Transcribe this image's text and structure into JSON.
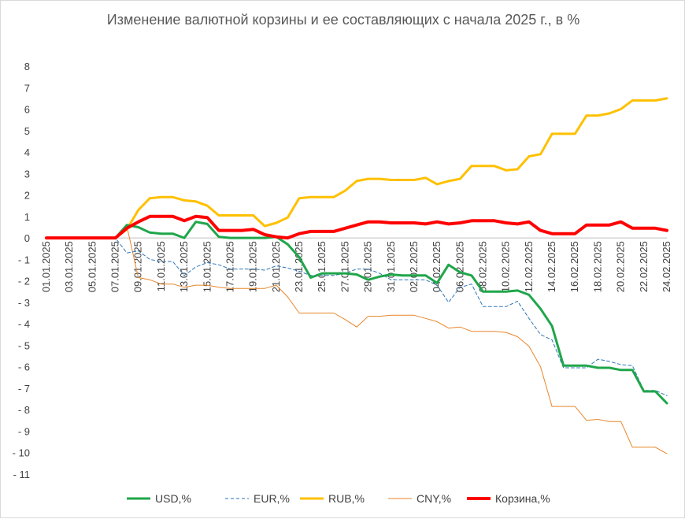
{
  "chart_data": {
    "type": "line",
    "title": "Изменение валютной корзины и ее составляющих с начала 2025 г., в %",
    "ylim": [
      -11,
      8
    ],
    "y_ticks": [
      "8",
      "7",
      "6",
      "5",
      "4",
      "3",
      "2",
      "1",
      "0",
      "- 1",
      "- 2",
      "- 3",
      "- 4",
      "- 5",
      "- 6",
      "- 7",
      "- 8",
      "- 9",
      "- 10",
      "- 11"
    ],
    "y_tick_values": [
      8,
      7,
      6,
      5,
      4,
      3,
      2,
      1,
      0,
      -1,
      -2,
      -3,
      -4,
      -5,
      -6,
      -7,
      -8,
      -9,
      -10,
      -11
    ],
    "x_tick_labels": [
      "01.01.2025",
      "03.01.2025",
      "05.01.2025",
      "07.01.2025",
      "09.01.2025",
      "11.01.2025",
      "13.01.2025",
      "15.01.2025",
      "17.01.2025",
      "19.01.2025",
      "21.01.2025",
      "23.01.2025",
      "25.01.2025",
      "27.01.2025",
      "29.01.2025",
      "31.01.2025",
      "02.02.2025",
      "04.02.2025",
      "06.02.2025",
      "08.02.2025",
      "10.02.2025",
      "12.02.2025",
      "14.02.2025",
      "16.02.2025",
      "18.02.2025",
      "20.02.2025",
      "22.02.2025",
      "24.02.2025"
    ],
    "x_day_range": [
      1,
      55
    ],
    "grid": false,
    "legend_position": "bottom",
    "series": [
      {
        "name": "USD,%",
        "color": "#1fa64a",
        "style": "solid",
        "width": 3,
        "points": [
          [
            1,
            0
          ],
          [
            2,
            0
          ],
          [
            3,
            0
          ],
          [
            4,
            0
          ],
          [
            5,
            0
          ],
          [
            6,
            0
          ],
          [
            7,
            0
          ],
          [
            8,
            0.6
          ],
          [
            9,
            0.5
          ],
          [
            10,
            0.25
          ],
          [
            11,
            0.2
          ],
          [
            12,
            0.2
          ],
          [
            13,
            0
          ],
          [
            14,
            0.75
          ],
          [
            15,
            0.65
          ],
          [
            16,
            0.05
          ],
          [
            17,
            0
          ],
          [
            18,
            0
          ],
          [
            19,
            0
          ],
          [
            20,
            0
          ],
          [
            21,
            0.05
          ],
          [
            22,
            -0.3
          ],
          [
            23,
            -0.9
          ],
          [
            24,
            -1.85
          ],
          [
            25,
            -1.65
          ],
          [
            26,
            -1.65
          ],
          [
            27,
            -1.65
          ],
          [
            28,
            -1.7
          ],
          [
            29,
            -1.95
          ],
          [
            30,
            -1.8
          ],
          [
            31,
            -1.7
          ],
          [
            32,
            -1.75
          ],
          [
            33,
            -1.75
          ],
          [
            34,
            -1.75
          ],
          [
            35,
            -2.1
          ],
          [
            36,
            -1.25
          ],
          [
            37,
            -1.6
          ],
          [
            38,
            -1.75
          ],
          [
            39,
            -2.5
          ],
          [
            40,
            -2.5
          ],
          [
            41,
            -2.5
          ],
          [
            42,
            -2.45
          ],
          [
            43,
            -2.65
          ],
          [
            44,
            -3.3
          ],
          [
            45,
            -4.1
          ],
          [
            46,
            -5.95
          ],
          [
            47,
            -5.95
          ],
          [
            48,
            -5.95
          ],
          [
            49,
            -6.05
          ],
          [
            50,
            -6.05
          ],
          [
            51,
            -6.15
          ],
          [
            52,
            -6.15
          ],
          [
            53,
            -7.15
          ],
          [
            54,
            -7.15
          ],
          [
            55,
            -7.7
          ]
        ]
      },
      {
        "name": "EUR,%",
        "color": "#2e75b6",
        "style": "dashed",
        "width": 1,
        "points": [
          [
            1,
            0
          ],
          [
            2,
            0
          ],
          [
            3,
            0
          ],
          [
            4,
            0
          ],
          [
            5,
            0
          ],
          [
            6,
            0
          ],
          [
            7,
            0
          ],
          [
            8,
            -0.7
          ],
          [
            9,
            -0.6
          ],
          [
            10,
            -1
          ],
          [
            11,
            -1.1
          ],
          [
            12,
            -1.1
          ],
          [
            13,
            -1.75
          ],
          [
            14,
            -1.35
          ],
          [
            15,
            -1.15
          ],
          [
            16,
            -1.25
          ],
          [
            17,
            -1.45
          ],
          [
            18,
            -1.45
          ],
          [
            19,
            -1.45
          ],
          [
            20,
            -1.5
          ],
          [
            21,
            -1.3
          ],
          [
            22,
            -1.4
          ],
          [
            23,
            -1.55
          ],
          [
            24,
            -1.75
          ],
          [
            25,
            -1.75
          ],
          [
            26,
            -1.75
          ],
          [
            27,
            -1.65
          ],
          [
            28,
            -1.45
          ],
          [
            29,
            -1.45
          ],
          [
            30,
            -1.65
          ],
          [
            31,
            -1.95
          ],
          [
            32,
            -1.95
          ],
          [
            33,
            -1.95
          ],
          [
            34,
            -1.95
          ],
          [
            35,
            -2.2
          ],
          [
            36,
            -3
          ],
          [
            37,
            -2.3
          ],
          [
            38,
            -2.15
          ],
          [
            39,
            -3.2
          ],
          [
            40,
            -3.2
          ],
          [
            41,
            -3.2
          ],
          [
            42,
            -2.95
          ],
          [
            43,
            -3.75
          ],
          [
            44,
            -4.5
          ],
          [
            45,
            -4.75
          ],
          [
            46,
            -6.05
          ],
          [
            47,
            -6.05
          ],
          [
            48,
            -6.05
          ],
          [
            49,
            -5.65
          ],
          [
            50,
            -5.75
          ],
          [
            51,
            -5.9
          ],
          [
            52,
            -5.95
          ],
          [
            53,
            -7.1
          ],
          [
            54,
            -7.1
          ],
          [
            55,
            -7.35
          ]
        ]
      },
      {
        "name": "RUB,%",
        "color": "#ffc000",
        "style": "solid",
        "width": 3,
        "points": [
          [
            1,
            0
          ],
          [
            2,
            0
          ],
          [
            3,
            0
          ],
          [
            4,
            0
          ],
          [
            5,
            0
          ],
          [
            6,
            0
          ],
          [
            7,
            0
          ],
          [
            8,
            0.4
          ],
          [
            9,
            1.3
          ],
          [
            10,
            1.85
          ],
          [
            11,
            1.9
          ],
          [
            12,
            1.9
          ],
          [
            13,
            1.75
          ],
          [
            14,
            1.7
          ],
          [
            15,
            1.5
          ],
          [
            16,
            1.05
          ],
          [
            17,
            1.05
          ],
          [
            18,
            1.05
          ],
          [
            19,
            1.05
          ],
          [
            20,
            0.55
          ],
          [
            21,
            0.7
          ],
          [
            22,
            0.95
          ],
          [
            23,
            1.85
          ],
          [
            24,
            1.9
          ],
          [
            25,
            1.9
          ],
          [
            26,
            1.9
          ],
          [
            27,
            2.2
          ],
          [
            28,
            2.65
          ],
          [
            29,
            2.75
          ],
          [
            30,
            2.75
          ],
          [
            31,
            2.7
          ],
          [
            32,
            2.7
          ],
          [
            33,
            2.7
          ],
          [
            34,
            2.8
          ],
          [
            35,
            2.5
          ],
          [
            36,
            2.65
          ],
          [
            37,
            2.75
          ],
          [
            38,
            3.35
          ],
          [
            39,
            3.35
          ],
          [
            40,
            3.35
          ],
          [
            41,
            3.15
          ],
          [
            42,
            3.2
          ],
          [
            43,
            3.8
          ],
          [
            44,
            3.9
          ],
          [
            45,
            4.85
          ],
          [
            46,
            4.85
          ],
          [
            47,
            4.85
          ],
          [
            48,
            5.7
          ],
          [
            49,
            5.7
          ],
          [
            50,
            5.8
          ],
          [
            51,
            6
          ],
          [
            52,
            6.4
          ],
          [
            53,
            6.4
          ],
          [
            54,
            6.4
          ],
          [
            55,
            6.5
          ]
        ]
      },
      {
        "name": "CNY,%",
        "color": "#e8862a",
        "style": "solid",
        "width": 1,
        "points": [
          [
            1,
            0
          ],
          [
            2,
            0
          ],
          [
            3,
            0
          ],
          [
            4,
            0
          ],
          [
            5,
            0
          ],
          [
            6,
            0
          ],
          [
            7,
            0
          ],
          [
            8,
            0.55
          ],
          [
            9,
            -1.85
          ],
          [
            10,
            -1.95
          ],
          [
            11,
            -2.15
          ],
          [
            12,
            -2.15
          ],
          [
            13,
            -2.3
          ],
          [
            14,
            -2.2
          ],
          [
            15,
            -2.2
          ],
          [
            16,
            -2.3
          ],
          [
            17,
            -2.35
          ],
          [
            18,
            -2.35
          ],
          [
            19,
            -2.35
          ],
          [
            20,
            -2.35
          ],
          [
            21,
            -2.2
          ],
          [
            22,
            -2.75
          ],
          [
            23,
            -3.5
          ],
          [
            24,
            -3.5
          ],
          [
            25,
            -3.5
          ],
          [
            26,
            -3.5
          ],
          [
            27,
            -3.8
          ],
          [
            28,
            -4.15
          ],
          [
            29,
            -3.65
          ],
          [
            30,
            -3.65
          ],
          [
            31,
            -3.6
          ],
          [
            32,
            -3.6
          ],
          [
            33,
            -3.6
          ],
          [
            34,
            -3.75
          ],
          [
            35,
            -3.9
          ],
          [
            36,
            -4.2
          ],
          [
            37,
            -4.15
          ],
          [
            38,
            -4.35
          ],
          [
            39,
            -4.35
          ],
          [
            40,
            -4.35
          ],
          [
            41,
            -4.4
          ],
          [
            42,
            -4.6
          ],
          [
            43,
            -5.05
          ],
          [
            44,
            -6
          ],
          [
            45,
            -7.85
          ],
          [
            46,
            -7.85
          ],
          [
            47,
            -7.85
          ],
          [
            48,
            -8.5
          ],
          [
            49,
            -8.45
          ],
          [
            50,
            -8.55
          ],
          [
            51,
            -8.55
          ],
          [
            52,
            -9.75
          ],
          [
            53,
            -9.75
          ],
          [
            54,
            -9.75
          ],
          [
            55,
            -10.05
          ]
        ]
      },
      {
        "name": "Корзина,%",
        "color": "#ff0000",
        "style": "solid",
        "width": 4,
        "points": [
          [
            1,
            0
          ],
          [
            2,
            0
          ],
          [
            3,
            0
          ],
          [
            4,
            0
          ],
          [
            5,
            0
          ],
          [
            6,
            0
          ],
          [
            7,
            0
          ],
          [
            8,
            0.45
          ],
          [
            9,
            0.75
          ],
          [
            10,
            1
          ],
          [
            11,
            1
          ],
          [
            12,
            1
          ],
          [
            13,
            0.8
          ],
          [
            14,
            1
          ],
          [
            15,
            0.95
          ],
          [
            16,
            0.35
          ],
          [
            17,
            0.35
          ],
          [
            18,
            0.35
          ],
          [
            19,
            0.4
          ],
          [
            20,
            0.15
          ],
          [
            21,
            0.05
          ],
          [
            22,
            0
          ],
          [
            23,
            0.2
          ],
          [
            24,
            0.3
          ],
          [
            25,
            0.3
          ],
          [
            26,
            0.3
          ],
          [
            27,
            0.45
          ],
          [
            28,
            0.6
          ],
          [
            29,
            0.75
          ],
          [
            30,
            0.75
          ],
          [
            31,
            0.7
          ],
          [
            32,
            0.7
          ],
          [
            33,
            0.7
          ],
          [
            34,
            0.65
          ],
          [
            35,
            0.75
          ],
          [
            36,
            0.65
          ],
          [
            37,
            0.7
          ],
          [
            38,
            0.8
          ],
          [
            39,
            0.8
          ],
          [
            40,
            0.8
          ],
          [
            41,
            0.7
          ],
          [
            42,
            0.65
          ],
          [
            43,
            0.75
          ],
          [
            44,
            0.35
          ],
          [
            45,
            0.2
          ],
          [
            46,
            0.2
          ],
          [
            47,
            0.2
          ],
          [
            48,
            0.6
          ],
          [
            49,
            0.6
          ],
          [
            50,
            0.6
          ],
          [
            51,
            0.75
          ],
          [
            52,
            0.45
          ],
          [
            53,
            0.45
          ],
          [
            54,
            0.45
          ],
          [
            55,
            0.35
          ]
        ]
      }
    ]
  }
}
